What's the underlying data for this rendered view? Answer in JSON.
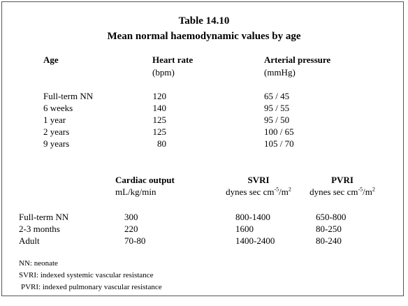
{
  "title": "Table 14.10",
  "subtitle": "Mean normal haemodynamic values by age",
  "table1": {
    "headers": [
      "Age",
      "Heart rate",
      "Arterial pressure"
    ],
    "units": [
      [
        "(bpm)"
      ],
      [
        "(mmHg)"
      ]
    ],
    "rows": [
      [
        "Full-term NN",
        "120",
        "65 / 45"
      ],
      [
        "6 weeks",
        "140",
        "95 / 55"
      ],
      [
        "1 year",
        "125",
        "95 / 50"
      ],
      [
        "2 years",
        "125",
        "100 / 65"
      ],
      [
        "9 years",
        "80",
        "105 / 70"
      ]
    ]
  },
  "table2": {
    "headers": [
      "Cardiac output",
      "SVRI",
      "PVRI"
    ],
    "units": [
      [
        "mL/kg/min"
      ],
      [
        "dynes sec cm",
        "-5",
        "/m",
        "2"
      ],
      [
        "dynes sec cm",
        "-5",
        "/m",
        "2"
      ]
    ],
    "rows": [
      [
        "Full-term NN",
        "300",
        "800-1400",
        "650-800"
      ],
      [
        "2-3 months",
        "220",
        "1600",
        "80-250"
      ],
      [
        "Adult",
        "70-80",
        "1400-2400",
        "80-240"
      ]
    ]
  },
  "footnotes": [
    "NN: neonate",
    "SVRI: indexed systemic vascular resistance",
    "PVRI: indexed pulmonary vascular resistance"
  ]
}
